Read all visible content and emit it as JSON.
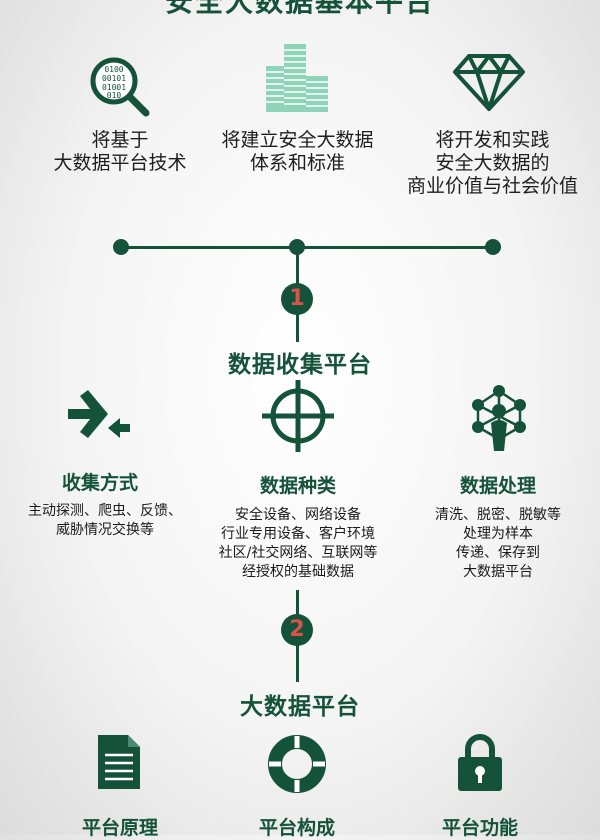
{
  "header": {
    "title": "安全大数据基本平台"
  },
  "features": [
    {
      "lines": [
        "将基于",
        "大数据平台技术"
      ],
      "icon": "magnifier-binary-icon"
    },
    {
      "lines": [
        "将建立安全大数据",
        "体系和标准"
      ],
      "icon": "buildings-icon"
    },
    {
      "lines": [
        "将开发和实践",
        "安全大数据的",
        "商业价值与社会价值"
      ],
      "icon": "diamond-icon"
    }
  ],
  "section1": {
    "badge": "1",
    "title": "数据收集平台",
    "columns": [
      {
        "title": "收集方式",
        "icon": "converge-arrows-icon",
        "lines": [
          "主动探测、爬虫、反馈、",
          "威胁情况交换等"
        ]
      },
      {
        "title": "数据种类",
        "icon": "crosshair-icon",
        "lines": [
          "安全设备、网络设备",
          "行业专用设备、客户环境",
          "社区/社交网络、互联网等",
          "经授权的基础数据"
        ]
      },
      {
        "title": "数据处理",
        "icon": "network-person-icon",
        "lines": [
          "清洗、脱密、脱敏等",
          "处理为样本",
          "传递、保存到",
          "大数据平台"
        ]
      }
    ]
  },
  "section2": {
    "badge": "2",
    "title": "大数据平台",
    "columns": [
      {
        "title": "平台原理",
        "icon": "document-icon"
      },
      {
        "title": "平台构成",
        "icon": "lifebuoy-icon"
      },
      {
        "title": "平台功能",
        "icon": "padlock-icon"
      }
    ]
  },
  "colors": {
    "primary": "#15523a",
    "badge_digit": "#d9534a"
  }
}
